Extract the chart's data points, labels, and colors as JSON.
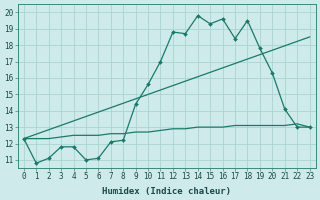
{
  "title": "",
  "xlabel": "Humidex (Indice chaleur)",
  "ylabel": "",
  "bg_color": "#ceeaea",
  "grid_color": "#a8d4d4",
  "line_color": "#1a7a6a",
  "xlim": [
    -0.5,
    23.5
  ],
  "ylim": [
    10.5,
    20.5
  ],
  "xticks": [
    0,
    1,
    2,
    3,
    4,
    5,
    6,
    7,
    8,
    9,
    10,
    11,
    12,
    13,
    14,
    15,
    16,
    17,
    18,
    19,
    20,
    21,
    22,
    23
  ],
  "yticks": [
    11,
    12,
    13,
    14,
    15,
    16,
    17,
    18,
    19,
    20
  ],
  "line1_x": [
    0,
    1,
    2,
    3,
    4,
    5,
    6,
    7,
    8,
    9,
    10,
    11,
    12,
    13,
    14,
    15,
    16,
    17,
    18,
    19,
    20,
    21,
    22,
    23
  ],
  "line1_y": [
    12.3,
    10.8,
    11.1,
    11.8,
    11.8,
    11.0,
    11.1,
    12.1,
    12.2,
    14.4,
    15.6,
    17.0,
    18.8,
    18.7,
    19.8,
    19.3,
    19.6,
    18.4,
    19.5,
    17.8,
    16.3,
    14.1,
    13.0,
    13.0
  ],
  "line2_x": [
    0,
    1,
    2,
    3,
    4,
    5,
    6,
    7,
    8,
    9,
    10,
    11,
    12,
    13,
    14,
    15,
    16,
    17,
    18,
    19,
    20,
    21,
    22,
    23
  ],
  "line2_y": [
    12.3,
    12.3,
    12.3,
    12.4,
    12.5,
    12.5,
    12.5,
    12.6,
    12.6,
    12.7,
    12.7,
    12.8,
    12.9,
    12.9,
    13.0,
    13.0,
    13.0,
    13.1,
    13.1,
    13.1,
    13.1,
    13.1,
    13.2,
    13.0
  ],
  "line3_x": [
    0,
    23
  ],
  "line3_y": [
    12.3,
    18.5
  ],
  "tick_fontsize": 5.5,
  "xlabel_fontsize": 6.5
}
